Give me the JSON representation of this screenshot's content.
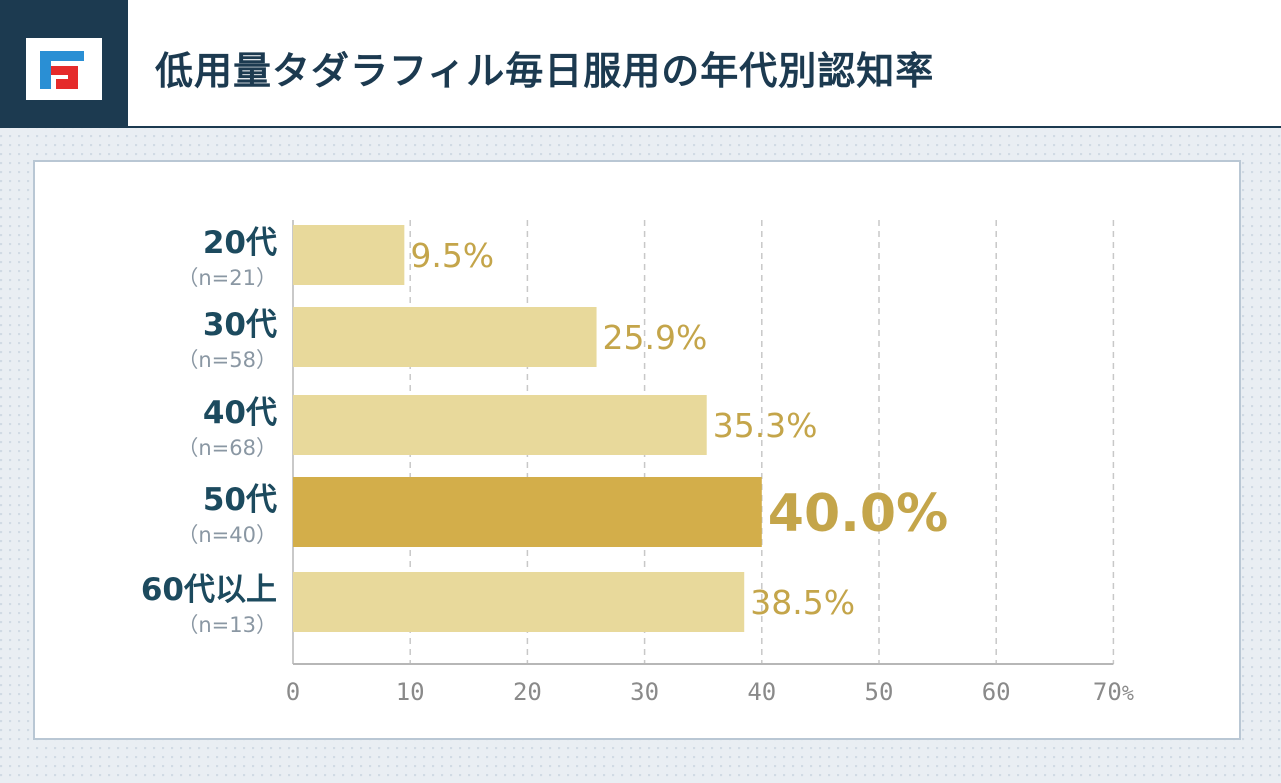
{
  "header": {
    "title": "低用量タダラフィル毎日服用の年代別認知率",
    "logo_icon": "brand-logo-icon"
  },
  "colors": {
    "bar": "#e8d99b",
    "bar_highlight": "#d3ae4a",
    "value_text": "#c4a54a",
    "label_text": "#1c4a5e",
    "n_text": "#8a97a3",
    "axis": "#b7b7b7",
    "grid": "#c8c8c8",
    "tick_text": "#8a8a8a",
    "header_dark": "#1c3a50"
  },
  "chart_data": {
    "type": "bar",
    "orientation": "horizontal",
    "title": "低用量タダラフィル毎日服用の年代別認知率",
    "categories": [
      "20代",
      "30代",
      "40代",
      "50代",
      "60代以上"
    ],
    "sample_sizes": [
      "（n=21）",
      "（n=58）",
      "（n=68）",
      "（n=40）",
      "（n=13）"
    ],
    "values": [
      9.5,
      25.9,
      35.3,
      40.0,
      38.5
    ],
    "value_labels": [
      "9.5%",
      "25.9%",
      "35.3%",
      "40.0%",
      "38.5%"
    ],
    "highlight_index": 3,
    "xlim": [
      0,
      70
    ],
    "xticks": [
      0,
      10,
      20,
      30,
      40,
      50,
      60,
      70
    ],
    "xtick_labels": [
      "0",
      "10",
      "20",
      "30",
      "40",
      "50",
      "60",
      "70"
    ],
    "x_unit": "%",
    "grid": "vertical dashed",
    "xlabel": "",
    "ylabel": ""
  }
}
